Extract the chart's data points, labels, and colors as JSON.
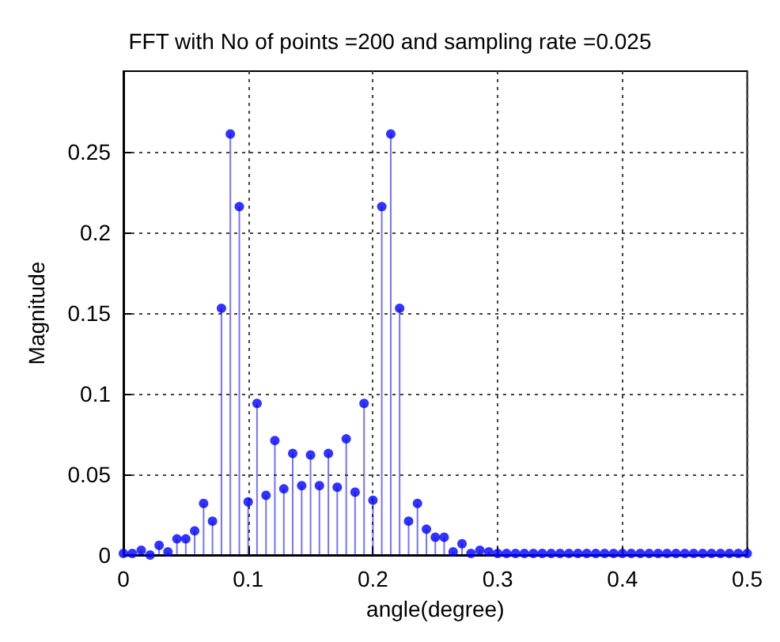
{
  "chart_data": {
    "type": "lollipop",
    "title": "FFT with No of points =200 and sampling rate =0.025",
    "xlabel": "angle(degree)",
    "ylabel": "Magnitude",
    "x": [
      0,
      0.0071,
      0.0143,
      0.0214,
      0.0286,
      0.0357,
      0.0429,
      0.05,
      0.0571,
      0.0643,
      0.0714,
      0.0786,
      0.0857,
      0.0929,
      0.1,
      0.1071,
      0.1143,
      0.1214,
      0.1286,
      0.1357,
      0.1429,
      0.15,
      0.1571,
      0.1643,
      0.1714,
      0.1786,
      0.1857,
      0.1929,
      0.2,
      0.2071,
      0.2143,
      0.2214,
      0.2286,
      0.2357,
      0.2429,
      0.25,
      0.2571,
      0.2643,
      0.2714,
      0.2786,
      0.2857,
      0.2929,
      0.3,
      0.3071,
      0.3143,
      0.3214,
      0.3286,
      0.3357,
      0.3429,
      0.35,
      0.3571,
      0.3643,
      0.3714,
      0.3786,
      0.3857,
      0.3929,
      0.4,
      0.4071,
      0.4143,
      0.4214,
      0.4286,
      0.4357,
      0.4429,
      0.45,
      0.4571,
      0.4643,
      0.4714,
      0.4786,
      0.4857,
      0.4929,
      0.5
    ],
    "series": [
      {
        "color": "#0000ff",
        "values": [
          0.001,
          0.001,
          0.003,
          0,
          0.006,
          0.002,
          0.01,
          0.01,
          0.015,
          0.032,
          0.021,
          0.153,
          0.261,
          0.216,
          0.033,
          0.094,
          0.037,
          0.071,
          0.041,
          0.063,
          0.043,
          0.062,
          0.043,
          0.063,
          0.042,
          0.072,
          0.039,
          0.094,
          0.034,
          0.216,
          0.261,
          0.153,
          0.021,
          0.032,
          0.016,
          0.011,
          0.011,
          0.002,
          0.007,
          0.001,
          0.003,
          0.002,
          0.001,
          0.001,
          0.001,
          0.001,
          0.001,
          0.001,
          0.001,
          0.001,
          0.001,
          0.001,
          0.001,
          0.001,
          0.001,
          0.001,
          0.001,
          0.001,
          0.001,
          0.001,
          0.001,
          0.001,
          0.001,
          0.001,
          0.001,
          0.001,
          0.001,
          0.001,
          0.001,
          0.001,
          0.001
        ]
      }
    ],
    "xlim": [
      0,
      0.5
    ],
    "xticks": [
      0,
      0.1,
      0.2,
      0.3,
      0.4,
      0.5
    ],
    "ylim": [
      0,
      0.3
    ],
    "yticks": [
      0,
      0.05,
      0.1,
      0.15,
      0.2,
      0.25
    ],
    "grid": true,
    "marker": "circle"
  }
}
